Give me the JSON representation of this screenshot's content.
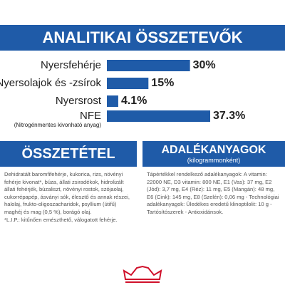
{
  "chart_data": {
    "type": "bar",
    "orientation": "horizontal",
    "title": "ANALITIKAI ÖSSZETEVŐK",
    "categories": [
      "Nyersfehérje",
      "Nyersolajok és -zsírok",
      "Nyersrost",
      "NFE"
    ],
    "note": "(Nitrogénmentes kivonható anyag)",
    "values": [
      30,
      15,
      4.1,
      37.3
    ],
    "value_labels": [
      "30%",
      "15%",
      "4.1%",
      "37.3%"
    ],
    "color": "#1f5ba8"
  },
  "composition": {
    "title": "ÖSSZETÉTEL",
    "text": "Dehidratált baromfifehérje, kukorica, rizs, növényi fehérje kivonat*, búza, állati zsiradékok, hidrolizált állati fehérjék, búzaliszt, növényi rostok, szójaolaj, cukorrépapép, ásványi sók, élesztő és annak részei, halolaj, frukto-oligoszacharidok, psyllium (útifű) maghéj és mag (0,5 %), borágó olaj.",
    "footnote": "*L.I.P.: kitűnően emészthető, válogatott fehérje."
  },
  "additives": {
    "title": "ADALÉKANYAGOK",
    "subtitle": "(kilogrammonként)",
    "text": "Tápértékkel rendelkező adalékanyagok: A vitamin: 22000 NE, D3 vitamin: 800 NE, E1 (Vas): 37 mg, E2 (Jód): 3,7 mg, E4 (Réz): 11 mg, E5 (Mangán): 48 mg, E6 (Cink): 145 mg, E8 (Szelén): 0,06 mg - Technológiai adalékanyagok: Üledékes eredetű klinoptilolit: 10 g - Tartósítószerek - Antioxidánsok."
  }
}
